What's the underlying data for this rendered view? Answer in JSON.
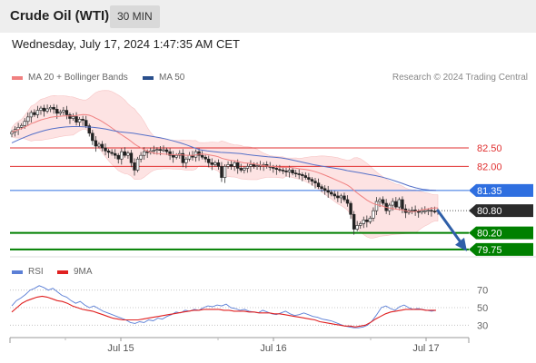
{
  "header": {
    "title": "Crude Oil (WTI)",
    "timeframe": "30 MIN"
  },
  "datetime": "Wednesday, July 17, 2024 1:47:35 AM CET",
  "credit": "Research © 2024 Trading Central",
  "colors": {
    "accent_blue": "#2f6fe0",
    "resistance_red": "#e03030",
    "support_green": "#008000",
    "price_dark": "#333333",
    "arrow": "#2f5fa8",
    "bollinger_fill": "#fde3e3",
    "ma20": "#f08080",
    "ma50": "#5570c8",
    "rsi": "#5b7fd6",
    "rsi_ma": "#e02020"
  },
  "chart_data": [
    {
      "type": "candlestick",
      "legend": [
        {
          "name": "MA 20 + Bollinger Bands",
          "color": "#f08080"
        },
        {
          "name": "MA 50",
          "color": "#2a4f8c"
        }
      ],
      "ylim": [
        79.55,
        84.1
      ],
      "x_ticks": [
        "Jul 15",
        "Jul 16",
        "Jul 17"
      ],
      "levels": [
        {
          "value": 82.5,
          "label": "82.50",
          "kind": "resistance"
        },
        {
          "value": 82.0,
          "label": "82.00",
          "kind": "resistance"
        },
        {
          "value": 81.35,
          "label": "81.35",
          "kind": "pivot"
        },
        {
          "value": 80.8,
          "label": "80.80",
          "kind": "last"
        },
        {
          "value": 80.2,
          "label": "80.20",
          "kind": "support"
        },
        {
          "value": 79.75,
          "label": "79.75",
          "kind": "support"
        }
      ],
      "closes": [
        82.93,
        83.0,
        83.06,
        83.11,
        83.22,
        83.34,
        83.46,
        83.4,
        83.52,
        83.58,
        83.5,
        83.56,
        83.6,
        83.55,
        83.44,
        83.48,
        83.52,
        83.4,
        83.3,
        83.35,
        83.2,
        83.28,
        83.25,
        83.1,
        82.9,
        82.7,
        82.55,
        82.6,
        82.5,
        82.42,
        82.38,
        82.35,
        82.3,
        82.2,
        82.4,
        82.3,
        82.36,
        82.1,
        81.9,
        82.2,
        82.3,
        82.4,
        82.38,
        82.42,
        82.44,
        82.46,
        82.45,
        82.45,
        82.4,
        82.3,
        82.25,
        82.3,
        82.35,
        82.1,
        82.2,
        82.3,
        82.25,
        82.4,
        82.3,
        82.25,
        82.2,
        82.1,
        82.05,
        82.1,
        82.0,
        81.7,
        82.0,
        82.05,
        82.0,
        82.1,
        81.95,
        81.9,
        81.95,
        82.0,
        82.05,
        82.0,
        82.02,
        82.03,
        82.05,
        82.0,
        81.98,
        81.95,
        81.92,
        81.9,
        81.88,
        81.85,
        81.9,
        81.82,
        81.8,
        81.78,
        81.75,
        81.7,
        81.65,
        81.6,
        81.55,
        81.45,
        81.4,
        81.35,
        81.3,
        81.25,
        81.2,
        81.15,
        81.2,
        81.1,
        81.0,
        80.7,
        80.3,
        80.4,
        80.45,
        80.55,
        80.5,
        80.6,
        80.8,
        81.05,
        81.1,
        81.0,
        80.8,
        80.95,
        81.05,
        80.9,
        81.1,
        80.85,
        80.75,
        80.8,
        80.82,
        80.78,
        80.76,
        80.8,
        80.8,
        80.81,
        80.79,
        80.78,
        80.8
      ],
      "ma50": [
        82.64,
        82.72,
        82.8,
        82.87,
        82.93,
        82.98,
        83.02,
        83.05,
        83.07,
        83.08,
        83.08,
        83.07,
        83.06,
        83.04,
        83.01,
        82.97,
        82.94,
        82.92,
        82.9,
        82.87,
        82.84,
        82.81,
        82.78,
        82.74,
        82.69,
        82.64,
        82.58,
        82.51,
        82.45,
        82.42,
        82.4,
        82.38,
        82.37,
        82.36,
        82.35,
        82.32,
        82.3,
        82.28,
        82.26,
        82.25,
        82.23,
        82.2,
        82.16,
        82.12,
        82.08,
        82.04,
        82.01,
        81.98,
        81.95,
        81.92,
        81.88,
        81.85,
        81.82,
        81.78,
        81.75,
        81.71,
        81.66,
        81.6,
        81.54,
        81.47,
        81.42,
        81.38,
        81.36,
        81.35
      ],
      "rsi": {
        "legend": [
          {
            "name": "RSI",
            "color": "#5b7fd6"
          },
          {
            "name": "9MA",
            "color": "#e02020"
          }
        ],
        "ylim": [
          20,
          80
        ],
        "y_ticks": [
          "70",
          "50",
          "30"
        ],
        "rsi": [
          52,
          58,
          61,
          65,
          70,
          72,
          75,
          73,
          70,
          72,
          68,
          64,
          62,
          58,
          55,
          57,
          53,
          50,
          52,
          49,
          46,
          44,
          42,
          40,
          38,
          36,
          33,
          32,
          34,
          33,
          36,
          35,
          38,
          37,
          40,
          42,
          45,
          44,
          47,
          46,
          48,
          47,
          50,
          52,
          51,
          53,
          52,
          54,
          50,
          49,
          47,
          48,
          46,
          45,
          44,
          47,
          45,
          43,
          42,
          44,
          46,
          43,
          41,
          42,
          44,
          42,
          40,
          39,
          37,
          36,
          35,
          33,
          31,
          29,
          28,
          27,
          27,
          28,
          30,
          35,
          42,
          50,
          52,
          49,
          47,
          51,
          53,
          50,
          48,
          49,
          48,
          47,
          46,
          47
        ],
        "ma9": [
          45,
          50,
          55,
          58,
          60,
          62,
          63,
          62,
          60,
          58,
          57,
          55,
          52,
          50,
          48,
          47,
          46,
          44,
          42,
          40,
          38,
          37,
          36,
          36,
          36,
          36,
          37,
          38,
          39,
          40,
          41,
          42,
          43,
          44,
          45,
          46,
          47,
          47,
          48,
          48,
          48,
          48,
          47,
          47,
          46,
          46,
          46,
          45,
          45,
          44,
          44,
          44,
          43,
          43,
          42,
          41,
          40,
          39,
          38,
          37,
          36,
          34,
          33,
          32,
          31,
          30,
          29,
          29,
          28,
          29,
          30,
          33,
          37,
          40,
          43,
          45,
          46,
          47,
          48,
          48,
          48,
          48,
          47,
          47,
          47
        ]
      }
    }
  ]
}
